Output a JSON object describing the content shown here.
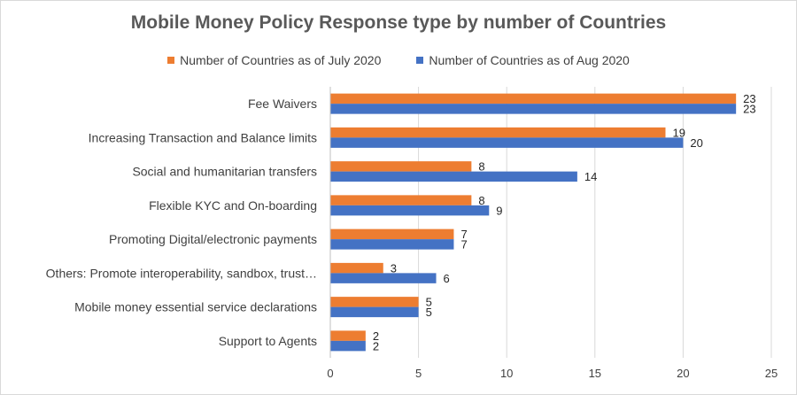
{
  "chart_data": {
    "type": "bar",
    "orientation": "horizontal",
    "title": "Mobile Money Policy Response type by number of Countries",
    "categories": [
      "Fee Waivers",
      "Increasing Transaction and Balance limits",
      "Social and humanitarian transfers",
      "Flexible KYC and On-boarding",
      "Promoting Digital/electronic payments",
      "Others: Promote interoperability, sandbox, trust…",
      "Mobile money essential service declarations",
      "Support to Agents"
    ],
    "series": [
      {
        "name": "Number of Countries as of July 2020",
        "color": "#ed7d31",
        "values": [
          23,
          19,
          8,
          8,
          7,
          3,
          5,
          2
        ]
      },
      {
        "name": "Number of Countries as of Aug 2020",
        "color": "#4472c4",
        "values": [
          23,
          20,
          14,
          9,
          7,
          6,
          5,
          2
        ]
      }
    ],
    "xlim": [
      0,
      25
    ],
    "xticks": [
      0,
      5,
      10,
      15,
      20,
      25
    ],
    "grid": true,
    "legend_position": "top"
  }
}
